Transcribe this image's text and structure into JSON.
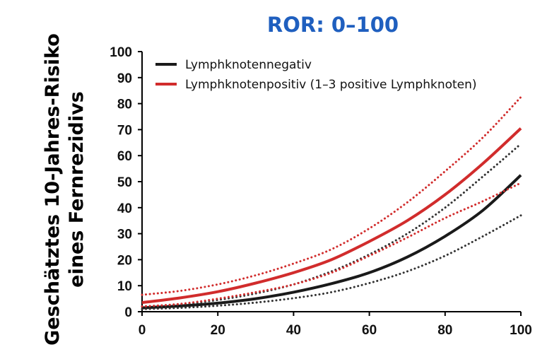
{
  "chart_data": {
    "type": "line",
    "title": "ROR: 0–100",
    "ylabel_lines": [
      "Geschätztes 10-Jahres-Risiko",
      "eines Fernrezidivs"
    ],
    "xlabel": "",
    "xlim": [
      0,
      100
    ],
    "ylim": [
      0,
      100
    ],
    "x_ticks": [
      0,
      20,
      40,
      60,
      80,
      100
    ],
    "y_ticks": [
      0,
      10,
      20,
      30,
      40,
      50,
      60,
      70,
      80,
      90,
      100
    ],
    "grid": false,
    "legend_position": "top-left",
    "x": [
      0,
      10,
      20,
      30,
      40,
      50,
      60,
      70,
      80,
      90,
      100
    ],
    "series": [
      {
        "name": "Lymphknotennegativ",
        "color": "#1a1a1a",
        "style": "solid",
        "values": [
          1.5,
          2.2,
          3.3,
          5.0,
          7.5,
          10.8,
          15.0,
          21.0,
          29.0,
          39.0,
          52.5
        ]
      },
      {
        "name": "",
        "color": "#333333",
        "style": "dotted",
        "values": [
          2.0,
          2.8,
          4.5,
          7.0,
          10.5,
          15.5,
          22.0,
          30.0,
          40.0,
          52.0,
          64.5
        ]
      },
      {
        "name": "",
        "color": "#333333",
        "style": "dotted",
        "values": [
          1.0,
          1.5,
          2.3,
          3.5,
          5.2,
          7.5,
          11.0,
          15.5,
          21.5,
          29.0,
          37.0
        ]
      },
      {
        "name": "Lymphknotenpositiv (1–3 positive Lymphknoten)",
        "color": "#d12c2c",
        "style": "solid",
        "values": [
          3.5,
          5.3,
          7.7,
          11.0,
          15.0,
          20.0,
          27.0,
          35.0,
          45.0,
          57.0,
          70.5
        ]
      },
      {
        "name": "",
        "color": "#d12c2c",
        "style": "dotted",
        "values": [
          6.5,
          8.0,
          10.5,
          14.0,
          18.5,
          24.0,
          32.0,
          42.0,
          54.0,
          67.0,
          82.5
        ]
      },
      {
        "name": "",
        "color": "#d12c2c",
        "style": "dotted",
        "values": [
          2.0,
          3.0,
          5.0,
          7.5,
          10.5,
          15.0,
          21.5,
          28.5,
          36.0,
          42.5,
          49.5
        ]
      }
    ]
  }
}
